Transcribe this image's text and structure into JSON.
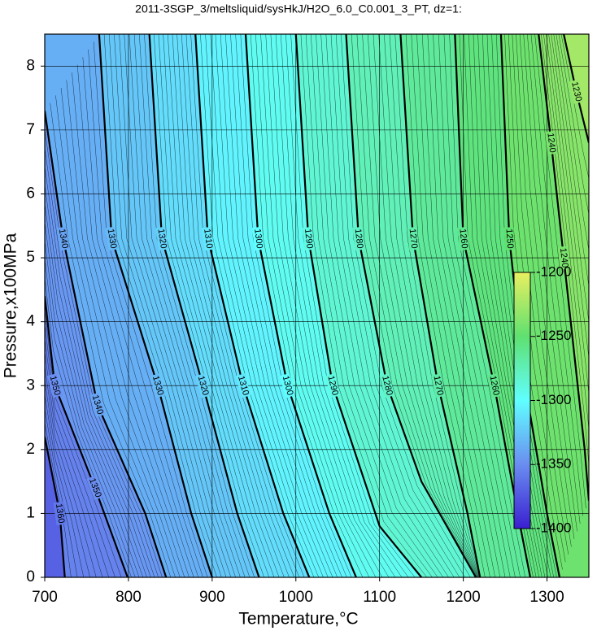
{
  "chart_data": {
    "type": "contour",
    "title": "2011-3SGP_3/meltsliquid/sysHkJ/H2O_6.0_C0.001_3_PT, dz=1:",
    "x_label": "Temperature,°C",
    "y_label": "Pressure,x100MPa",
    "xlim": [
      700,
      1350
    ],
    "ylim": [
      0,
      8.5
    ],
    "xticks": [
      700,
      800,
      900,
      1000,
      1100,
      1200,
      1300
    ],
    "yticks": [
      0,
      1,
      2,
      3,
      4,
      5,
      6,
      7,
      8
    ],
    "grid": true,
    "colormap": [
      "#3a1fd0",
      "#6a8df0",
      "#60ffff",
      "#5fe070",
      "#e8f060"
    ],
    "colorbar": {
      "lim": [
        -1400,
        -1200
      ],
      "ticks": [
        -1200,
        -1250,
        -1300,
        -1350,
        -1400
      ]
    },
    "series": [
      {
        "name": "1360",
        "level": -1360,
        "x": [
          700,
          718,
          724
        ],
        "y": [
          2.2,
          1.0,
          0
        ]
      },
      {
        "name": "1350",
        "level": -1350,
        "x": [
          700,
          712,
          760,
          799
        ],
        "y": [
          4.4,
          3.0,
          1.4,
          0
        ]
      },
      {
        "name": "1340",
        "level": -1340,
        "x": [
          700,
          722,
          763,
          820,
          845
        ],
        "y": [
          7.3,
          5.3,
          2.7,
          1.0,
          0
        ]
      },
      {
        "name": "1330",
        "level": -1330,
        "x": [
          765,
          780,
          835,
          875,
          900
        ],
        "y": [
          8.5,
          5.3,
          3.0,
          1.0,
          0
        ]
      },
      {
        "name": "1320",
        "level": -1320,
        "x": [
          825,
          840,
          889,
          930,
          956
        ],
        "y": [
          8.5,
          5.3,
          3.0,
          1.0,
          0
        ]
      },
      {
        "name": "1310",
        "level": -1310,
        "x": [
          880,
          895,
          937,
          985,
          1016
        ],
        "y": [
          8.5,
          5.3,
          3.0,
          1.0,
          0
        ]
      },
      {
        "name": "1300",
        "level": -1300,
        "x": [
          940,
          955,
          990,
          1040,
          1072
        ],
        "y": [
          8.5,
          5.3,
          3.0,
          1.0,
          0
        ]
      },
      {
        "name": "1290",
        "level": -1290,
        "x": [
          1000,
          1015,
          1044,
          1100,
          1150
        ],
        "y": [
          8.5,
          5.3,
          3.0,
          0.8,
          0
        ]
      },
      {
        "name": "1280",
        "level": -1280,
        "x": [
          1060,
          1075,
          1109,
          1150,
          1215
        ],
        "y": [
          8.5,
          5.3,
          3.0,
          1.5,
          0
        ]
      },
      {
        "name": "1270",
        "level": -1270,
        "x": [
          1125,
          1140,
          1170,
          1205,
          1220
        ],
        "y": [
          8.5,
          5.3,
          3.0,
          1.0,
          0
        ]
      },
      {
        "name": "1260",
        "level": -1260,
        "x": [
          1190,
          1200,
          1237,
          1265,
          1280
        ],
        "y": [
          8.5,
          5.3,
          3.0,
          1.0,
          0
        ]
      },
      {
        "name": "1250",
        "level": -1250,
        "x": [
          1245,
          1255,
          1274,
          1300,
          1315
        ],
        "y": [
          8.5,
          5.3,
          3.0,
          1.0,
          0
        ]
      },
      {
        "name": "1240",
        "level": -1240,
        "x": [
          1290,
          1305,
          1320,
          1345,
          1350
        ],
        "y": [
          8.5,
          6.8,
          5.0,
          2.0,
          1.2
        ]
      },
      {
        "name": "1230",
        "level": -1230,
        "x": [
          1320,
          1335,
          1350
        ],
        "y": [
          8.5,
          7.6,
          6.8
        ]
      }
    ]
  }
}
